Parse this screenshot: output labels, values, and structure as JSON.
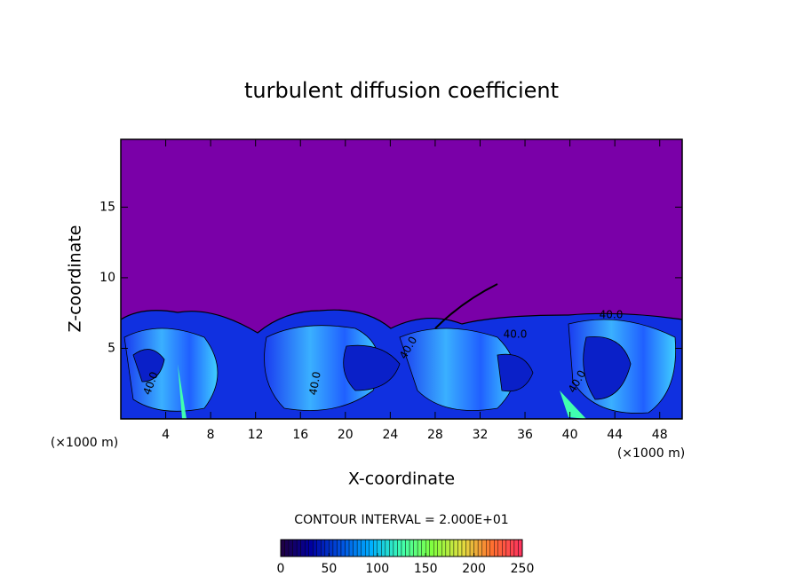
{
  "chart_data": {
    "type": "contour",
    "title": "turbulent diffusion coefficient",
    "x_label": "X-coordinate",
    "y_label": "Z-coordinate",
    "x_unit": "(×1000 m)",
    "y_unit": "(×1000 m)",
    "xlim": [
      0,
      50
    ],
    "xticks": [
      4,
      8,
      12,
      16,
      20,
      24,
      28,
      32,
      36,
      40,
      44,
      48
    ],
    "ylim": [
      0,
      19.8
    ],
    "yticks": [
      5,
      10,
      15
    ],
    "contour_interval": "CONTOUR INTERVAL = 2.000E+01",
    "contour_labels": [
      "40.0",
      "40.0",
      "40.0",
      "40.0",
      "40.0",
      "40.0"
    ],
    "colorbar": {
      "lim": [
        0,
        250
      ],
      "ticks": [
        0,
        50,
        100,
        150,
        200,
        250
      ]
    },
    "background_color": "#7a00a8",
    "colormap": [
      "#200040",
      "#0000a0",
      "#0050e0",
      "#00b0ff",
      "#40ffb0",
      "#80ff40",
      "#e0e040",
      "#ff7030",
      "#ff3060"
    ]
  }
}
